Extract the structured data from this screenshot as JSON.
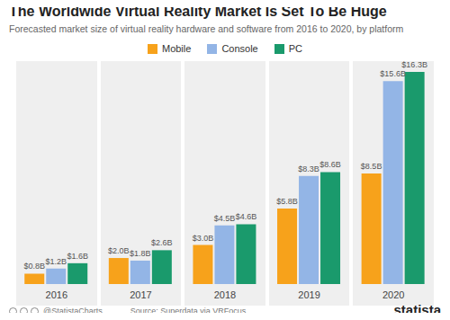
{
  "chart_data": {
    "type": "bar",
    "title": "The Worldwide Virtual Reality Market Is Set To Be Huge",
    "subtitle": "Forecasted market size of virtual reality hardware and software from 2016 to 2020, by platform",
    "categories": [
      "2016",
      "2017",
      "2018",
      "2019",
      "2020"
    ],
    "series": [
      {
        "name": "Mobile",
        "color": "#f7a21b",
        "values": [
          0.8,
          2.0,
          3.0,
          5.8,
          8.5
        ],
        "value_labels": [
          "$0.8B",
          "$2.0B",
          "$3.0B",
          "$5.8B",
          "$8.5B"
        ]
      },
      {
        "name": "Console",
        "color": "#93b5e6",
        "values": [
          1.2,
          1.8,
          4.5,
          8.3,
          15.6
        ],
        "value_labels": [
          "$1.2B",
          "$1.8B",
          "$4.5B",
          "$8.3B",
          "$15.6B"
        ]
      },
      {
        "name": "PC",
        "color": "#1a9a6c",
        "values": [
          1.6,
          2.6,
          4.6,
          8.6,
          16.3
        ],
        "value_labels": [
          "$1.6B",
          "$2.6B",
          "$4.6B",
          "$8.6B",
          "$16.3B"
        ]
      }
    ],
    "data_labels": true,
    "tick_labels": "x",
    "grid": false,
    "legend": "top",
    "annotations": [
      "@StatistaCharts",
      "Source: Superdata via VRFocus",
      "statista"
    ]
  }
}
